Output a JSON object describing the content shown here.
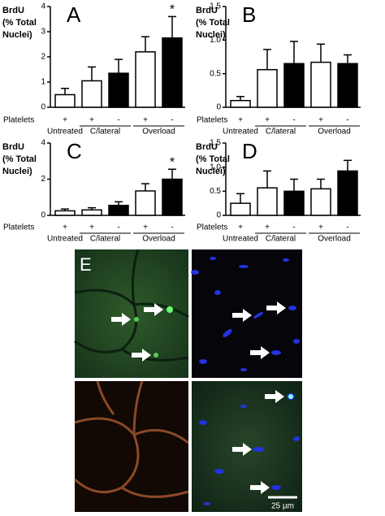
{
  "chart_data": [
    {
      "type": "bar",
      "panel": "A",
      "ylabel": [
        "BrdU",
        "(% Total",
        "Nuclei)"
      ],
      "row_label": "Platelets",
      "categories": [
        "+",
        "+",
        "-",
        "+",
        "-"
      ],
      "groups": [
        {
          "label": "Untreated",
          "size": 1
        },
        {
          "label": "C/lateral",
          "size": 2
        },
        {
          "label": "Overload",
          "size": 2
        }
      ],
      "values": [
        0.5,
        1.05,
        1.35,
        2.2,
        2.75
      ],
      "errors": [
        0.25,
        0.55,
        0.55,
        0.6,
        0.85
      ],
      "colors": [
        "#ffffff",
        "#ffffff",
        "#000000",
        "#ffffff",
        "#000000"
      ],
      "annotation": "*",
      "annotated": [
        false,
        false,
        false,
        false,
        true
      ],
      "ylim": [
        0,
        4
      ],
      "yticks": [
        0,
        1,
        2,
        3,
        4
      ]
    },
    {
      "type": "bar",
      "panel": "B",
      "ylabel": [
        "BrdU",
        "(% Total",
        "Nuclei)"
      ],
      "row_label": "Platelets",
      "categories": [
        "+",
        "+",
        "-",
        "+",
        "-"
      ],
      "groups": [
        {
          "label": "Untreated",
          "size": 1
        },
        {
          "label": "C/lateral",
          "size": 2
        },
        {
          "label": "Overload",
          "size": 2
        }
      ],
      "values": [
        0.1,
        0.56,
        0.65,
        0.67,
        0.65
      ],
      "errors": [
        0.06,
        0.3,
        0.33,
        0.27,
        0.13
      ],
      "colors": [
        "#ffffff",
        "#ffffff",
        "#000000",
        "#ffffff",
        "#000000"
      ],
      "ylim": [
        0,
        1.5
      ],
      "yticks": [
        0,
        0.5,
        {
          "value": 1,
          "label": "1.0"
        },
        1.5
      ]
    },
    {
      "type": "bar",
      "panel": "C",
      "ylabel": [
        "BrdU",
        "(% Total",
        "Nuclei)"
      ],
      "row_label": "Platelets",
      "categories": [
        "+",
        "+",
        "-",
        "+",
        "-"
      ],
      "groups": [
        {
          "label": "Untreated",
          "size": 1
        },
        {
          "label": "C/lateral",
          "size": 2
        },
        {
          "label": "Overload",
          "size": 2
        }
      ],
      "values": [
        0.25,
        0.3,
        0.55,
        1.35,
        2.0
      ],
      "errors": [
        0.1,
        0.12,
        0.2,
        0.4,
        0.55
      ],
      "colors": [
        "#ffffff",
        "#ffffff",
        "#000000",
        "#ffffff",
        "#000000"
      ],
      "annotation": "*",
      "annotated": [
        false,
        false,
        false,
        false,
        true
      ],
      "ylim": [
        0,
        4
      ],
      "yticks": [
        0,
        2,
        4
      ]
    },
    {
      "type": "bar",
      "panel": "D",
      "ylabel": [
        "BrdU",
        "(% Total",
        "Nuclei)"
      ],
      "row_label": "Platelets",
      "categories": [
        "+",
        "+",
        "-",
        "+",
        "-"
      ],
      "groups": [
        {
          "label": "Untreated",
          "size": 1
        },
        {
          "label": "C/lateral",
          "size": 2
        },
        {
          "label": "Overload",
          "size": 2
        }
      ],
      "values": [
        0.25,
        0.57,
        0.5,
        0.55,
        0.92
      ],
      "errors": [
        0.2,
        0.35,
        0.25,
        0.2,
        0.22
      ],
      "colors": [
        "#ffffff",
        "#ffffff",
        "#000000",
        "#ffffff",
        "#000000"
      ],
      "ylim": [
        0,
        1.5
      ],
      "yticks": [
        0,
        0.5,
        {
          "value": 1,
          "label": "1.0"
        },
        1.5
      ]
    }
  ],
  "panel_e": {
    "label": "E",
    "scale_bar": "25 µm"
  }
}
